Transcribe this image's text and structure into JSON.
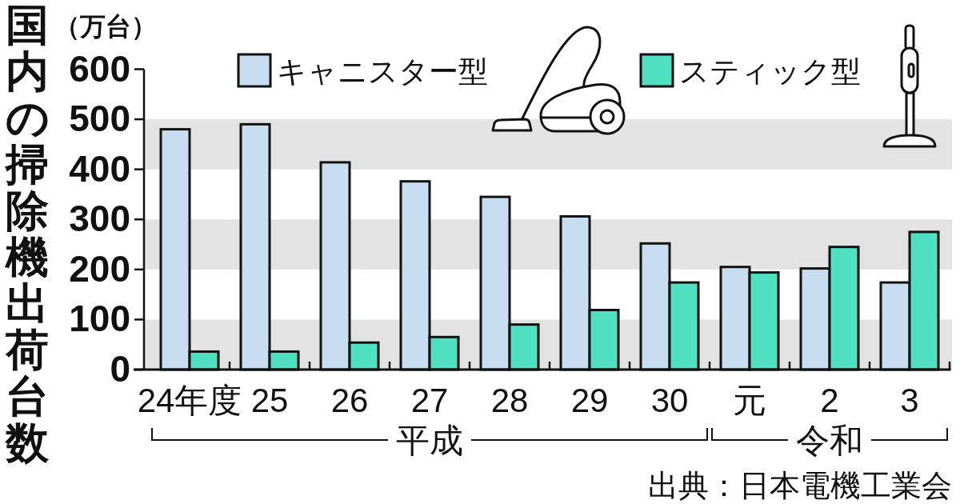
{
  "chart_data": {
    "type": "bar",
    "title": "国内の掃除機出荷台数",
    "ylabel": "（万台）",
    "categories": [
      "24年度",
      "25",
      "26",
      "27",
      "28",
      "29",
      "30",
      "元",
      "2",
      "3"
    ],
    "series": [
      {
        "name": "キャニスター型",
        "color": "#c9ddf1",
        "values": [
          480,
          490,
          414,
          376,
          345,
          306,
          252,
          205,
          202,
          174
        ]
      },
      {
        "name": "スティック型",
        "color": "#4fe0c1",
        "values": [
          36,
          36,
          54,
          65,
          90,
          119,
          174,
          194,
          245,
          275
        ]
      }
    ],
    "ylim": [
      0,
      600
    ],
    "yticks": [
      0,
      100,
      200,
      300,
      400,
      500,
      600
    ],
    "bands": [
      {
        "axis": "y",
        "from": 0,
        "to": 100,
        "color": "#e3e3e3"
      },
      {
        "axis": "y",
        "from": 200,
        "to": 300,
        "color": "#e3e3e3"
      },
      {
        "axis": "y",
        "from": 400,
        "to": 500,
        "color": "#e3e3e3"
      }
    ],
    "legend": "top",
    "annotations": [
      "平成",
      "令和",
      "出典：日本電機工業会"
    ]
  }
}
